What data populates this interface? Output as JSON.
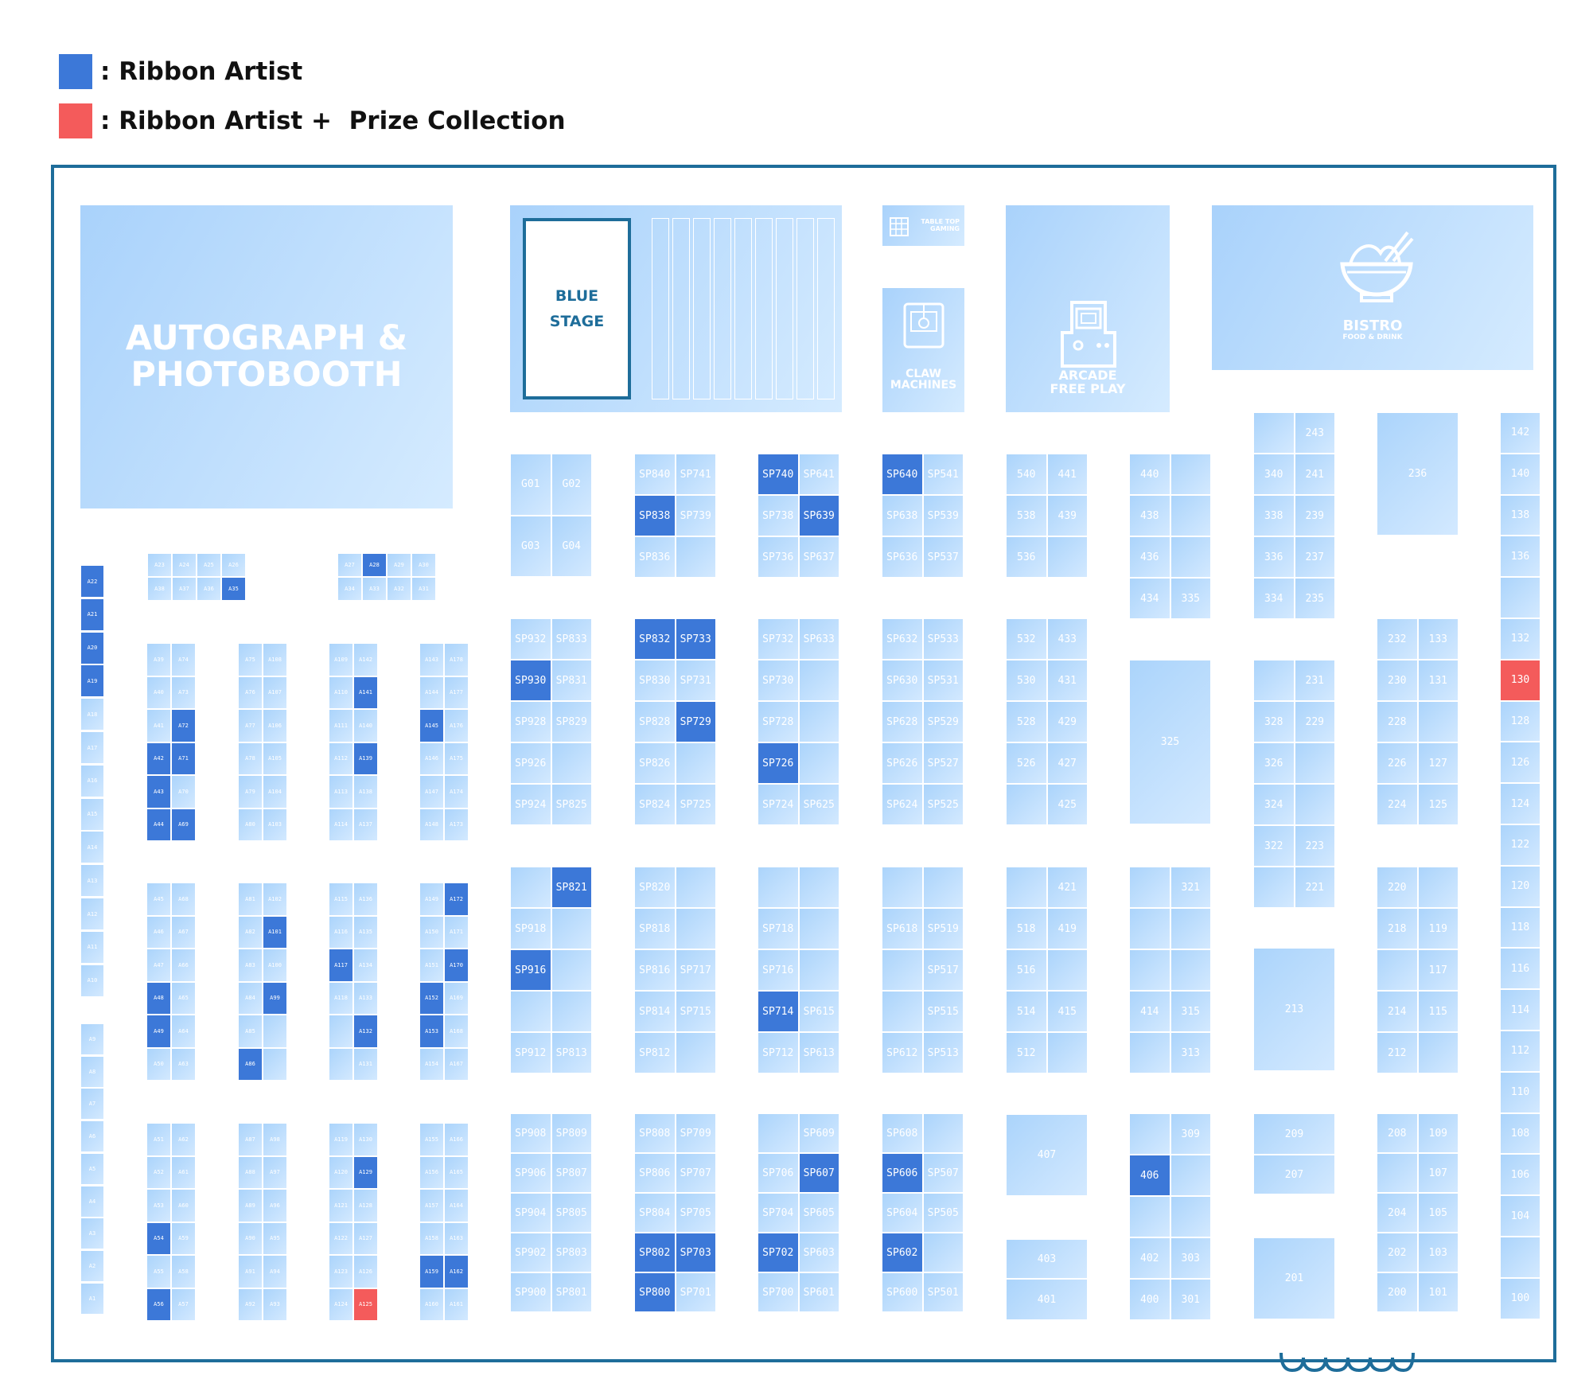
{
  "colors": {
    "ribbon_artist": "#3c78d8",
    "prize_collection": "#f45b5b",
    "booth": "#bcdcfc",
    "border": "#1e6d9a"
  },
  "legend": [
    {
      "label": ": Ribbon Artist",
      "color": "#3c78d8"
    },
    {
      "label": ": Ribbon Artist +  Prize Collection",
      "color": "#f45b5b"
    }
  ],
  "areas": {
    "autograph": [
      "AUTOGRAPH &",
      "PHOTOBOOTH"
    ],
    "blue_stage": [
      "BLUE",
      "STAGE"
    ],
    "tabletop": [
      "TABLE TOP",
      "GAMING"
    ],
    "claw": [
      "CLAW",
      "MACHINES"
    ],
    "arcade": [
      "ARCADE",
      "FREE PLAY"
    ],
    "bistro": [
      "BISTRO",
      "FOOD & DRINK"
    ]
  },
  "highlighted": {
    "ribbon_artist": [
      "A19",
      "A20",
      "A21",
      "A22",
      "A28",
      "A35",
      "A141",
      "A139",
      "A145",
      "A72",
      "A71",
      "A42",
      "A43",
      "A44",
      "A69",
      "A101",
      "A99",
      "A86",
      "A117",
      "A132",
      "A172",
      "A170",
      "A152",
      "A153",
      "A48",
      "A49",
      "A54",
      "A56",
      "A129",
      "A159",
      "A162",
      "SP740",
      "SP640",
      "SP838",
      "SP639",
      "SP832",
      "SP733",
      "SP930",
      "SP729",
      "SP726",
      "SP821",
      "SP916",
      "SP714",
      "SP607",
      "SP606",
      "SP802",
      "SP703",
      "SP800",
      "SP702",
      "SP602",
      "406"
    ],
    "prize_collection": [
      "130",
      "A125"
    ]
  },
  "booths": {
    "A": {
      "left_col_top": [
        "A22",
        "A21",
        "A20",
        "A19",
        "A18",
        "A17",
        "A16",
        "A15",
        "A14",
        "A13",
        "A12",
        "A11",
        "A10"
      ],
      "left_col_bottom": [
        "A9",
        "A8",
        "A7",
        "A6",
        "A5",
        "A4",
        "A3",
        "A2",
        "A1"
      ],
      "top_group_1": [
        [
          "A23",
          "A24",
          "A25",
          "A26"
        ],
        [
          "A38",
          "A37",
          "A36",
          "A35"
        ]
      ],
      "top_group_2": [
        [
          "A27",
          "A28",
          "A29",
          "A30"
        ],
        [
          "A34",
          "A33",
          "A32",
          "A31"
        ]
      ],
      "c1b1": [
        [
          "A39",
          "A74"
        ],
        [
          "A40",
          "A73"
        ],
        [
          "A41",
          "A72"
        ],
        [
          "A42",
          "A71"
        ],
        [
          "A43",
          "A70"
        ],
        [
          "A44",
          "A69"
        ]
      ],
      "c2b1": [
        [
          "A75",
          "A108"
        ],
        [
          "A76",
          "A107"
        ],
        [
          "A77",
          "A106"
        ],
        [
          "A78",
          "A105"
        ],
        [
          "A79",
          "A104"
        ],
        [
          "A80",
          "A103"
        ]
      ],
      "c3b1": [
        [
          "A109",
          "A142"
        ],
        [
          "A110",
          "A141"
        ],
        [
          "A111",
          "A140"
        ],
        [
          "A112",
          "A139"
        ],
        [
          "A113",
          "A138"
        ],
        [
          "A114",
          "A137"
        ]
      ],
      "c4b1": [
        [
          "A143",
          "A178"
        ],
        [
          "A144",
          "A177"
        ],
        [
          "A145",
          "A176"
        ],
        [
          "A146",
          "A175"
        ],
        [
          "A147",
          "A174"
        ],
        [
          "A148",
          "A173"
        ]
      ],
      "c1b2": [
        [
          "A45",
          "A68"
        ],
        [
          "A46",
          "A67"
        ],
        [
          "A47",
          "A66"
        ],
        [
          "A48",
          "A65"
        ],
        [
          "A49",
          "A64"
        ],
        [
          "A50",
          "A63"
        ]
      ],
      "c2b2": [
        [
          "A81",
          "A102"
        ],
        [
          "A82",
          "A101"
        ],
        [
          "A83",
          "A100"
        ],
        [
          "A84",
          "A99"
        ],
        [
          "A85",
          ""
        ],
        [
          "A86",
          ""
        ]
      ],
      "c3b2": [
        [
          "A115",
          "A136"
        ],
        [
          "A116",
          "A135"
        ],
        [
          "A117",
          "A134"
        ],
        [
          "A118",
          "A133"
        ],
        [
          "",
          "A132"
        ],
        [
          "",
          "A131"
        ]
      ],
      "c4b2": [
        [
          "A149",
          "A172"
        ],
        [
          "A150",
          "A171"
        ],
        [
          "A151",
          "A170"
        ],
        [
          "A152",
          "A169"
        ],
        [
          "A153",
          "A168"
        ],
        [
          "A154",
          "A167"
        ]
      ],
      "c1b3": [
        [
          "A51",
          "A62"
        ],
        [
          "A52",
          "A61"
        ],
        [
          "A53",
          "A60"
        ],
        [
          "A54",
          "A59"
        ],
        [
          "A55",
          "A58"
        ],
        [
          "A56",
          "A57"
        ]
      ],
      "c2b3": [
        [
          "A87",
          "A98"
        ],
        [
          "A88",
          "A97"
        ],
        [
          "A89",
          "A96"
        ],
        [
          "A90",
          "A95"
        ],
        [
          "A91",
          "A94"
        ],
        [
          "A92",
          "A93"
        ]
      ],
      "c3b3": [
        [
          "A119",
          "A130"
        ],
        [
          "A120",
          "A129"
        ],
        [
          "A121",
          "A128"
        ],
        [
          "A122",
          "A127"
        ],
        [
          "A123",
          "A126"
        ],
        [
          "A124",
          "A125"
        ]
      ],
      "c4b3": [
        [
          "A155",
          "A166"
        ],
        [
          "A156",
          "A165"
        ],
        [
          "A157",
          "A164"
        ],
        [
          "A158",
          "A163"
        ],
        [
          "A159",
          "A162"
        ],
        [
          "A160",
          "A161"
        ]
      ]
    },
    "G": [
      "G01",
      "G02",
      "G03",
      "G04"
    ],
    "SP9": {
      "b1": [
        [
          "SP932",
          "SP833"
        ],
        [
          "SP930",
          "SP831"
        ],
        [
          "SP928",
          "SP829"
        ],
        [
          "SP926",
          ""
        ],
        [
          "SP924",
          "SP825"
        ]
      ],
      "b2": [
        [
          "",
          "SP821"
        ],
        [
          "SP918",
          ""
        ],
        [
          "SP916",
          ""
        ],
        [
          "",
          ""
        ],
        [
          "SP912",
          "SP813"
        ]
      ],
      "b3": [
        [
          "SP908",
          "SP809"
        ],
        [
          "SP906",
          "SP807"
        ],
        [
          "SP904",
          "SP805"
        ],
        [
          "SP902",
          "SP803"
        ],
        [
          "SP900",
          "SP801"
        ]
      ]
    },
    "SP8": {
      "b0": [
        [
          "SP840",
          "SP741"
        ],
        [
          "SP838",
          "SP739"
        ],
        [
          "SP836",
          ""
        ]
      ],
      "b1": [
        [
          "SP832",
          "SP733"
        ],
        [
          "SP830",
          "SP731"
        ],
        [
          "SP828",
          "SP729"
        ],
        [
          "SP826",
          ""
        ],
        [
          "SP824",
          "SP725"
        ]
      ],
      "b2": [
        [
          "SP820",
          ""
        ],
        [
          "SP818",
          ""
        ],
        [
          "SP816",
          "SP717"
        ],
        [
          "SP814",
          "SP715"
        ],
        [
          "SP812",
          ""
        ]
      ],
      "b3": [
        [
          "SP808",
          "SP709"
        ],
        [
          "SP806",
          "SP707"
        ],
        [
          "SP804",
          "SP705"
        ],
        [
          "SP802",
          "SP703"
        ],
        [
          "SP800",
          "SP701"
        ]
      ]
    },
    "SP7": {
      "b0": [
        [
          "SP740",
          "SP641"
        ],
        [
          "SP738",
          "SP639"
        ],
        [
          "SP736",
          "SP637"
        ]
      ],
      "b1": [
        [
          "SP732",
          "SP633"
        ],
        [
          "SP730",
          ""
        ],
        [
          "SP728",
          ""
        ],
        [
          "SP726",
          ""
        ],
        [
          "SP724",
          "SP625"
        ]
      ],
      "b2": [
        [
          "",
          ""
        ],
        [
          "SP718",
          ""
        ],
        [
          "SP716",
          ""
        ],
        [
          "SP714",
          "SP615"
        ],
        [
          "SP712",
          "SP613"
        ]
      ],
      "b3": [
        [
          "",
          "SP609"
        ],
        [
          "SP706",
          "SP607"
        ],
        [
          "SP704",
          "SP605"
        ],
        [
          "SP702",
          "SP603"
        ],
        [
          "SP700",
          "SP601"
        ]
      ]
    },
    "SP6": {
      "b0": [
        [
          "SP640",
          "SP541"
        ],
        [
          "SP638",
          "SP539"
        ],
        [
          "SP636",
          "SP537"
        ]
      ],
      "b1": [
        [
          "SP632",
          "SP533"
        ],
        [
          "SP630",
          "SP531"
        ],
        [
          "SP628",
          "SP529"
        ],
        [
          "SP626",
          "SP527"
        ],
        [
          "SP624",
          "SP525"
        ]
      ],
      "b2": [
        [
          "",
          ""
        ],
        [
          "SP618",
          "SP519"
        ],
        [
          "",
          "SP517"
        ],
        [
          "",
          "SP515"
        ],
        [
          "SP612",
          "SP513"
        ]
      ],
      "b3": [
        [
          "SP608",
          ""
        ],
        [
          "SP606",
          "SP507"
        ],
        [
          "SP604",
          "SP505"
        ],
        [
          "SP602",
          ""
        ],
        [
          "SP600",
          "SP501"
        ]
      ]
    },
    "c5": {
      "b0": [
        [
          "540",
          "441"
        ],
        [
          "538",
          "439"
        ],
        [
          "536",
          ""
        ]
      ],
      "b1": [
        [
          "532",
          "433"
        ],
        [
          "530",
          "431"
        ],
        [
          "528",
          "429"
        ],
        [
          "526",
          "427"
        ],
        [
          "",
          "425"
        ]
      ],
      "b2": [
        [
          "",
          "421"
        ],
        [
          "518",
          "419"
        ],
        [
          "516",
          ""
        ],
        [
          "514",
          "415"
        ],
        [
          "512",
          ""
        ]
      ],
      "b3": [
        "407",
        "403",
        "401"
      ]
    },
    "c4": {
      "b0": [
        [
          "440",
          ""
        ],
        [
          "438",
          ""
        ],
        [
          "436",
          ""
        ],
        [
          "434",
          "335"
        ]
      ],
      "b1": "325",
      "b2": [
        [
          "",
          "321"
        ],
        [
          "",
          ""
        ],
        [
          "",
          ""
        ],
        [
          "414",
          "315"
        ],
        [
          "",
          "313"
        ]
      ],
      "b3": [
        [
          "",
          "309"
        ],
        [
          "406",
          ""
        ],
        [
          "",
          ""
        ],
        [
          "402",
          "303"
        ],
        [
          "400",
          "301"
        ]
      ]
    },
    "c3": {
      "b0": [
        [
          "",
          "243"
        ],
        [
          "340",
          "241"
        ],
        [
          "338",
          "239"
        ],
        [
          "336",
          "237"
        ],
        [
          "334",
          "235"
        ]
      ],
      "b1": [
        [
          "",
          "231"
        ],
        [
          "328",
          "229"
        ],
        [
          "326",
          ""
        ],
        [
          "324",
          ""
        ],
        [
          "322",
          "223"
        ],
        [
          "",
          "221"
        ]
      ],
      "b2": "213",
      "b3": [
        "209",
        "207",
        "201"
      ]
    },
    "c2": {
      "b0": "236",
      "b1": [
        [
          "232",
          "133"
        ],
        [
          "230",
          "131"
        ],
        [
          "228",
          ""
        ],
        [
          "226",
          "127"
        ],
        [
          "224",
          "125"
        ]
      ],
      "b2": [
        [
          "220",
          ""
        ],
        [
          "218",
          "119"
        ],
        [
          "",
          "117"
        ],
        [
          "214",
          "115"
        ],
        [
          "212",
          ""
        ]
      ],
      "b3": [
        [
          "208",
          "109"
        ],
        [
          "",
          "107"
        ],
        [
          "204",
          "105"
        ],
        [
          "202",
          "103"
        ],
        [
          "200",
          "101"
        ]
      ]
    },
    "c1": [
      "142",
      "140",
      "138",
      "136",
      "",
      "132",
      "130",
      "128",
      "126",
      "124",
      "122",
      "120",
      "118",
      "116",
      "114",
      "112",
      "110",
      "108",
      "106",
      "104",
      "",
      "100"
    ]
  }
}
